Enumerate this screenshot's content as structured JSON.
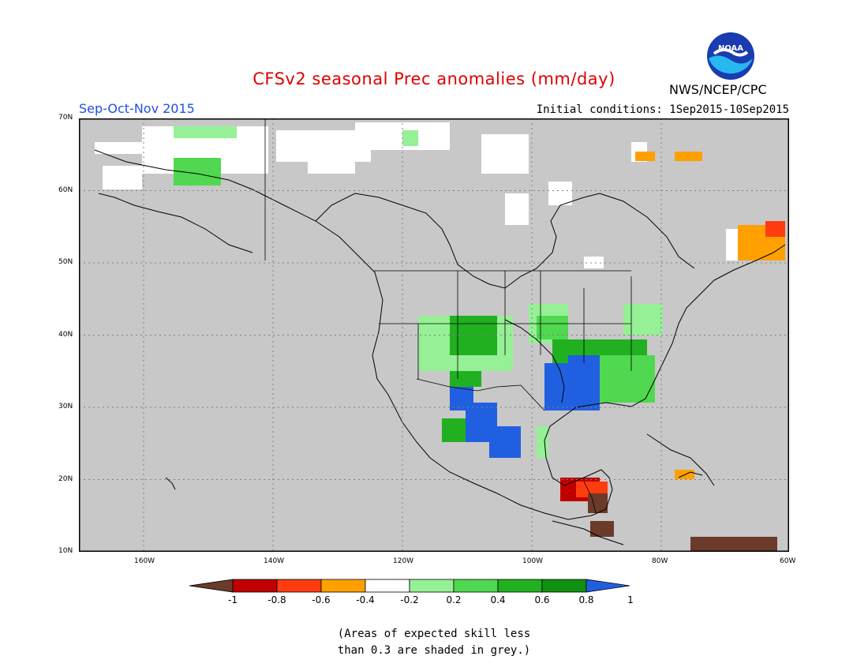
{
  "header": {
    "title": "CFSv2 seasonal Prec anomalies (mm/day)",
    "season": "Sep-Oct-Nov 2015",
    "initial_conditions": "Initial conditions: 1Sep2015-10Sep2015",
    "agency": "NWS/NCEP/CPC",
    "logo_text": "NOAA"
  },
  "map": {
    "lat_labels": [
      "70N",
      "60N",
      "50N",
      "40N",
      "30N",
      "20N",
      "10N"
    ],
    "lon_labels": [
      "160W",
      "140W",
      "120W",
      "100W",
      "80W",
      "60W"
    ],
    "colors": {
      "background_grey": "#c8c8c8",
      "land_lines": "#000000",
      "grid_dots": "#808080"
    }
  },
  "legend": {
    "ticks": [
      "-1",
      "-0.8",
      "-0.6",
      "-0.4",
      "-0.2",
      "0.2",
      "0.4",
      "0.6",
      "0.8",
      "1"
    ],
    "colors": [
      "#6b3a2a",
      "#c00000",
      "#ff3c10",
      "#ffa000",
      "#ffffff",
      "#96f096",
      "#50d850",
      "#20b020",
      "#109010",
      "#2060e0"
    ]
  },
  "note": {
    "line1": "(Areas of expected skill less",
    "line2": "than 0.3 are shaded in grey.)"
  }
}
